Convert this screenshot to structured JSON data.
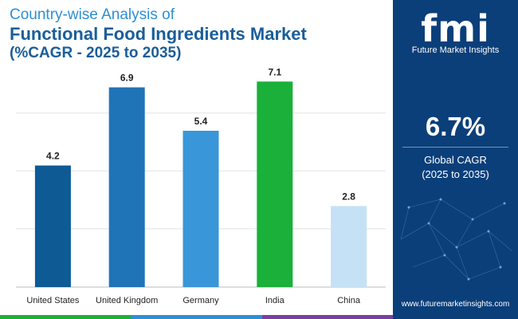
{
  "title": {
    "line1": "Country-wise Analysis of",
    "line2": "Functional Food Ingredients Market",
    "line3": "(%CAGR - 2025 to 2035)"
  },
  "brand": {
    "logo": "fmi",
    "name": "Future Market Insights",
    "website": "www.futuremarketinsights.com"
  },
  "summary": {
    "value": "6.7%",
    "label_line1": "Global CAGR",
    "label_line2": "(2025 to 2035)"
  },
  "colors": {
    "panel": "#0b3f7a",
    "bar_colors": [
      "#0d5a95",
      "#1f74b8",
      "#3996d8",
      "#1bb03a",
      "#c5e1f5"
    ],
    "bottom_bar": [
      "#1bb03a",
      "#2d8fd5",
      "#7b3f9e"
    ]
  },
  "chart_data": {
    "type": "bar",
    "categories": [
      "United States",
      "United Kingdom",
      "Germany",
      "India",
      "China"
    ],
    "values": [
      4.2,
      6.9,
      5.4,
      7.1,
      2.8
    ],
    "value_labels": [
      "4.2",
      "6.9",
      "5.4",
      "7.1",
      "2.8"
    ],
    "ylim": [
      0,
      7.3
    ],
    "grid": true,
    "xlabel": "",
    "ylabel": ""
  }
}
